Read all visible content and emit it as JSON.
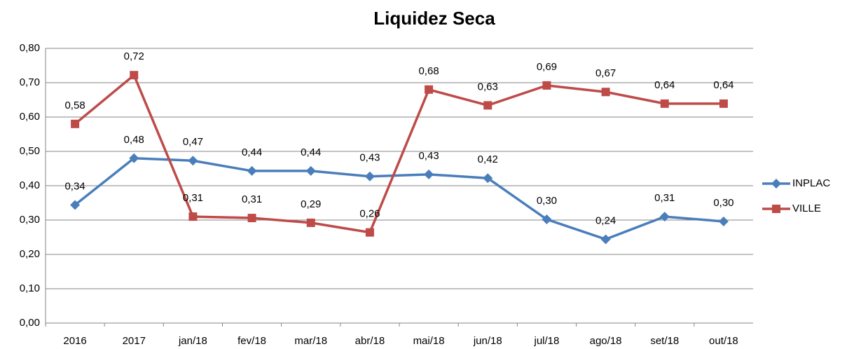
{
  "chart_data": {
    "type": "line",
    "title": "Liquidez Seca",
    "categories": [
      "2016",
      "2017",
      "jan/18",
      "fev/18",
      "mar/18",
      "abr/18",
      "mai/18",
      "jun/18",
      "jul/18",
      "ago/18",
      "set/18",
      "out/18"
    ],
    "series": [
      {
        "name": "INPLAC",
        "color": "#4a7ebb",
        "marker": "diamond",
        "values": [
          0.344,
          0.48,
          0.473,
          0.443,
          0.443,
          0.427,
          0.433,
          0.422,
          0.302,
          0.244,
          0.31,
          0.296
        ],
        "value_labels": [
          "0,34",
          "0,48",
          "0,47",
          "0,44",
          "0,44",
          "0,43",
          "0,43",
          "0,42",
          "0,30",
          "0,24",
          "0,31",
          "0,30"
        ]
      },
      {
        "name": "VILLE",
        "color": "#be4b48",
        "marker": "square",
        "values": [
          0.58,
          0.722,
          0.31,
          0.306,
          0.292,
          0.264,
          0.68,
          0.634,
          0.692,
          0.673,
          0.639,
          0.639
        ],
        "value_labels": [
          "0,58",
          "0,72",
          "0,31",
          "0,31",
          "0,29",
          "0,26",
          "0,68",
          "0,63",
          "0,69",
          "0,67",
          "0,64",
          "0,64"
        ]
      }
    ],
    "ylim": [
      0,
      0.8
    ],
    "yticks": [
      {
        "value": 0,
        "label": "0,00"
      },
      {
        "value": 0.1,
        "label": "0,10"
      },
      {
        "value": 0.2,
        "label": "0,20"
      },
      {
        "value": 0.3,
        "label": "0,30"
      },
      {
        "value": 0.4,
        "label": "0,40"
      },
      {
        "value": 0.5,
        "label": "0,50"
      },
      {
        "value": 0.6,
        "label": "0,60"
      },
      {
        "value": 0.7,
        "label": "0,70"
      },
      {
        "value": 0.8,
        "label": "0,80"
      }
    ],
    "grid": true,
    "legend": "right"
  }
}
